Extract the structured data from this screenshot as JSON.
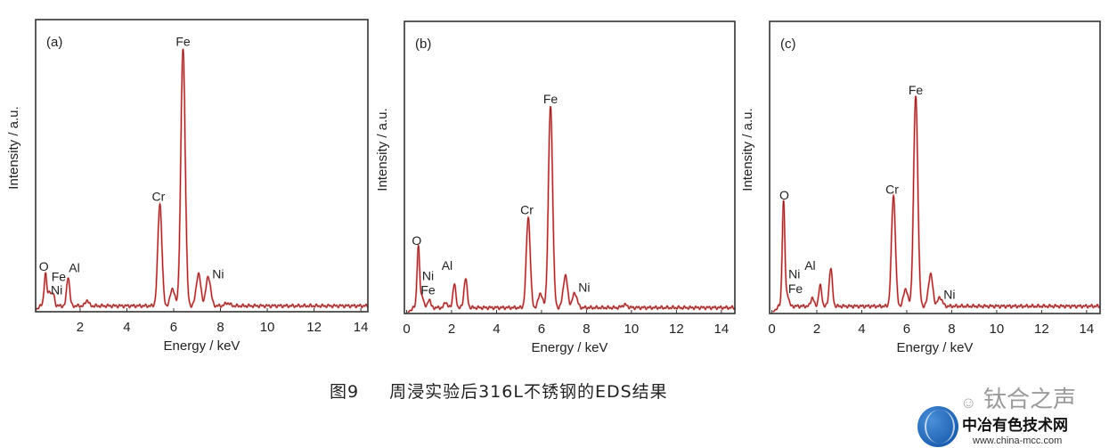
{
  "chart_data": [
    {
      "type": "line",
      "panel_label": "(a)",
      "xlabel": "Energy / keV",
      "ylabel": "Intensity / a.u.",
      "xlim": [
        0.1,
        14.3
      ],
      "ylim": [
        0,
        100
      ],
      "xticks": [
        2,
        4,
        6,
        8,
        10,
        12,
        14
      ],
      "grid": false,
      "color": "#d62b2b",
      "baseline": 2,
      "peaks": [
        [
          0.52,
          11
        ],
        [
          0.7,
          5
        ],
        [
          0.85,
          4
        ],
        [
          1.49,
          10
        ],
        [
          2.3,
          2
        ],
        [
          5.41,
          35
        ],
        [
          5.95,
          6
        ],
        [
          6.4,
          88
        ],
        [
          7.06,
          11
        ],
        [
          7.48,
          10
        ],
        [
          8.3,
          1
        ]
      ],
      "annotations": [
        {
          "text": "O",
          "x": 0.45,
          "y": 14
        },
        {
          "text": "Fe",
          "x": 0.95,
          "y": 10.5
        },
        {
          "text": "Ni",
          "x": 1.0,
          "y": 6
        },
        {
          "text": "Al",
          "x": 1.45,
          "y": 13.5
        },
        {
          "text": "Cr",
          "x": 5.35,
          "y": 38
        },
        {
          "text": "Fe",
          "x": 6.4,
          "y": 91
        },
        {
          "text": "Ni",
          "x": 7.9,
          "y": 11.5
        }
      ]
    },
    {
      "type": "line",
      "panel_label": "(b)",
      "xlabel": "Energy / keV",
      "ylabel": "Intensity / a.u.",
      "xlim": [
        -0.1,
        14.6
      ],
      "ylim": [
        0,
        100
      ],
      "xticks": [
        0,
        2,
        4,
        6,
        8,
        10,
        12,
        14
      ],
      "grid": false,
      "color": "#d62b2b",
      "baseline": 2,
      "peaks": [
        [
          0.52,
          21
        ],
        [
          0.7,
          4
        ],
        [
          1.0,
          3
        ],
        [
          1.74,
          2
        ],
        [
          2.12,
          8
        ],
        [
          2.62,
          10
        ],
        [
          5.41,
          31
        ],
        [
          5.95,
          5
        ],
        [
          6.4,
          69
        ],
        [
          7.06,
          11
        ],
        [
          7.48,
          5
        ],
        [
          9.7,
          1
        ]
      ],
      "annotations": [
        {
          "text": "O",
          "x": 0.45,
          "y": 23.5
        },
        {
          "text": "Ni",
          "x": 0.95,
          "y": 11.5
        },
        {
          "text": "Al",
          "x": 1.8,
          "y": 15
        },
        {
          "text": "Fe",
          "x": 0.95,
          "y": 6.5
        },
        {
          "text": "Cr",
          "x": 5.35,
          "y": 34
        },
        {
          "text": "Fe",
          "x": 6.4,
          "y": 72
        },
        {
          "text": "Ni",
          "x": 7.9,
          "y": 7.5
        }
      ]
    },
    {
      "type": "line",
      "panel_label": "(c)",
      "xlabel": "Energy / keV",
      "ylabel": "Intensity / a.u.",
      "xlim": [
        -0.1,
        14.6
      ],
      "ylim": [
        0,
        100
      ],
      "xticks": [
        0,
        2,
        4,
        6,
        8,
        10,
        12,
        14
      ],
      "grid": false,
      "color": "#d62b2b",
      "baseline": 2.5,
      "peaks": [
        [
          0.52,
          36
        ],
        [
          0.7,
          4
        ],
        [
          1.8,
          3
        ],
        [
          2.15,
          7
        ],
        [
          2.62,
          13
        ],
        [
          5.41,
          38
        ],
        [
          5.95,
          6
        ],
        [
          6.4,
          72
        ],
        [
          7.06,
          11
        ],
        [
          7.48,
          3
        ]
      ],
      "annotations": [
        {
          "text": "O",
          "x": 0.55,
          "y": 39
        },
        {
          "text": "Ni",
          "x": 1.0,
          "y": 12
        },
        {
          "text": "Al",
          "x": 1.7,
          "y": 15
        },
        {
          "text": "Fe",
          "x": 1.05,
          "y": 7
        },
        {
          "text": "Cr",
          "x": 5.35,
          "y": 41
        },
        {
          "text": "Fe",
          "x": 6.4,
          "y": 75
        },
        {
          "text": "Ni",
          "x": 7.9,
          "y": 5
        }
      ]
    }
  ],
  "caption": {
    "number": "图9",
    "text": "周浸实验后316L不锈钢的EDS结果"
  },
  "watermark": {
    "wechat": "钛合之声",
    "site_name": "中冶有色技术网",
    "url": "www.china-mcc.com"
  }
}
